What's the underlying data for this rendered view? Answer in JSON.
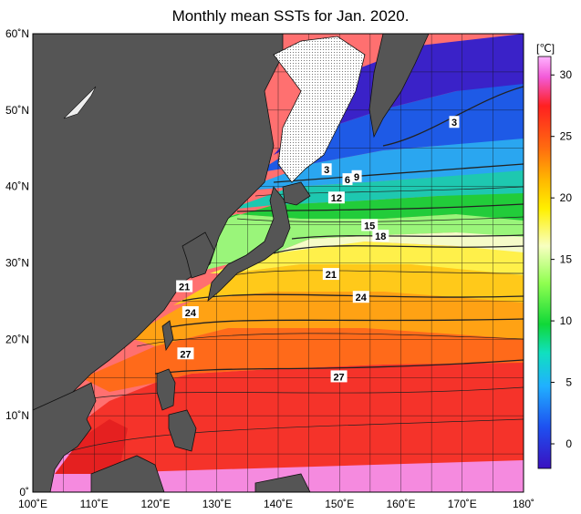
{
  "title": "Monthly mean SSTs for Jan. 2020.",
  "colorbar": {
    "unit": "[℃]",
    "ticks": [
      "30",
      "25",
      "20",
      "15",
      "10",
      "5",
      "0"
    ],
    "tick_values": [
      30,
      25,
      20,
      15,
      10,
      5,
      0
    ],
    "range": [
      -2,
      31.5
    ]
  },
  "axes": {
    "lat_labels": [
      "60˚N",
      "50˚N",
      "40˚N",
      "30˚N",
      "20˚N",
      "10˚N",
      "0˚"
    ],
    "lat_values": [
      60,
      50,
      40,
      30,
      20,
      10,
      0
    ],
    "lon_labels": [
      "100˚E",
      "110˚E",
      "120˚E",
      "130˚E",
      "140˚E",
      "150˚E",
      "160˚E",
      "170˚E",
      "180˚"
    ],
    "lon_values": [
      100,
      110,
      120,
      130,
      140,
      150,
      160,
      170,
      180
    ]
  },
  "contour_labels": [
    {
      "text": "3",
      "lon": 168.7,
      "lat": 48.4
    },
    {
      "text": "3",
      "lon": 147.9,
      "lat": 42.2
    },
    {
      "text": "6",
      "lon": 151.3,
      "lat": 40.9
    },
    {
      "text": "9",
      "lon": 152.8,
      "lat": 41.3
    },
    {
      "text": "12",
      "lon": 149.5,
      "lat": 38.5
    },
    {
      "text": "15",
      "lon": 154.9,
      "lat": 34.9
    },
    {
      "text": "18",
      "lon": 156.7,
      "lat": 33.5
    },
    {
      "text": "21",
      "lon": 124.7,
      "lat": 26.9
    },
    {
      "text": "21",
      "lon": 148.6,
      "lat": 28.5
    },
    {
      "text": "24",
      "lon": 153.5,
      "lat": 25.5
    },
    {
      "text": "24",
      "lon": 125.7,
      "lat": 23.5
    },
    {
      "text": "27",
      "lon": 124.9,
      "lat": 18.1
    },
    {
      "text": "27",
      "lon": 149.9,
      "lat": 15.1
    }
  ],
  "colors": {
    "land": "#555555",
    "sea_ice": "#f2f2f2"
  }
}
